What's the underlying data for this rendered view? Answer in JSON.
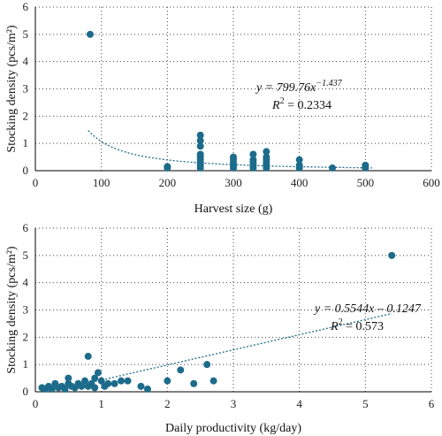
{
  "colors": {
    "marker": "#1d6b8a",
    "trend": "#1d6b8a",
    "axis": "#000000",
    "grid": "#444444"
  },
  "chart_data": [
    {
      "type": "scatter",
      "xlabel": "Harvest size (g)",
      "ylabel": "Stocking density (pcs/m²)",
      "xlim": [
        0,
        600
      ],
      "ylim": [
        0,
        6
      ],
      "xticks": [
        0,
        100,
        200,
        300,
        400,
        500,
        600
      ],
      "yticks": [
        0,
        1,
        2,
        3,
        4,
        5,
        6
      ],
      "grid": "dotted vertical and horizontal",
      "points": [
        [
          83,
          5.0
        ],
        [
          200,
          0.15
        ],
        [
          200,
          0.1
        ],
        [
          250,
          1.3
        ],
        [
          250,
          1.1
        ],
        [
          250,
          0.9
        ],
        [
          250,
          0.6
        ],
        [
          250,
          0.5
        ],
        [
          250,
          0.4
        ],
        [
          250,
          0.3
        ],
        [
          250,
          0.2
        ],
        [
          250,
          0.1
        ],
        [
          300,
          0.5
        ],
        [
          300,
          0.4
        ],
        [
          300,
          0.3
        ],
        [
          300,
          0.2
        ],
        [
          300,
          0.1
        ],
        [
          330,
          0.6
        ],
        [
          330,
          0.4
        ],
        [
          330,
          0.3
        ],
        [
          330,
          0.2
        ],
        [
          330,
          0.1
        ],
        [
          350,
          0.7
        ],
        [
          350,
          0.5
        ],
        [
          350,
          0.4
        ],
        [
          350,
          0.3
        ],
        [
          350,
          0.2
        ],
        [
          350,
          0.1
        ],
        [
          400,
          0.4
        ],
        [
          400,
          0.2
        ],
        [
          400,
          0.1
        ],
        [
          450,
          0.1
        ],
        [
          500,
          0.2
        ],
        [
          500,
          0.1
        ]
      ],
      "trendline": {
        "type": "power",
        "a": 799.76,
        "b": -1.437,
        "x_range": [
          80,
          510
        ]
      },
      "equation_line1": "y = 799.76x",
      "equation_exp": "−1.437",
      "r2_prefix": "R",
      "r2_value": " = 0.2334"
    },
    {
      "type": "scatter",
      "xlabel": "Daily productivity (kg/day)",
      "ylabel": "Stocking density (pcs/m²)",
      "xlim": [
        0,
        6
      ],
      "ylim": [
        0,
        6
      ],
      "xticks": [
        0,
        1,
        2,
        3,
        4,
        5,
        6
      ],
      "yticks": [
        0,
        1,
        2,
        3,
        4,
        5,
        6
      ],
      "grid": "dotted vertical and horizontal",
      "points": [
        [
          0.1,
          0.15
        ],
        [
          0.15,
          0.1
        ],
        [
          0.2,
          0.2
        ],
        [
          0.25,
          0.1
        ],
        [
          0.3,
          0.3
        ],
        [
          0.35,
          0.15
        ],
        [
          0.4,
          0.2
        ],
        [
          0.45,
          0.1
        ],
        [
          0.5,
          0.5
        ],
        [
          0.5,
          0.3
        ],
        [
          0.55,
          0.2
        ],
        [
          0.6,
          0.15
        ],
        [
          0.65,
          0.3
        ],
        [
          0.7,
          0.2
        ],
        [
          0.75,
          0.4
        ],
        [
          0.8,
          1.3
        ],
        [
          0.8,
          0.2
        ],
        [
          0.85,
          0.3
        ],
        [
          0.9,
          0.5
        ],
        [
          0.9,
          0.15
        ],
        [
          0.95,
          0.7
        ],
        [
          1.0,
          0.4
        ],
        [
          1.05,
          0.2
        ],
        [
          1.1,
          0.3
        ],
        [
          1.2,
          0.3
        ],
        [
          1.3,
          0.4
        ],
        [
          1.4,
          0.4
        ],
        [
          1.6,
          0.2
        ],
        [
          1.7,
          0.1
        ],
        [
          2.0,
          0.4
        ],
        [
          2.2,
          0.8
        ],
        [
          2.4,
          0.3
        ],
        [
          2.6,
          1.0
        ],
        [
          2.7,
          0.4
        ],
        [
          5.4,
          5.0
        ]
      ],
      "trendline": {
        "type": "linear",
        "a": 0.5544,
        "b": -0.1247,
        "x_range": [
          0.8,
          5.4
        ]
      },
      "equation_line1": "y = 0.5544x – 0.1247",
      "r2_prefix": "R",
      "r2_value": " = 0.573"
    }
  ]
}
